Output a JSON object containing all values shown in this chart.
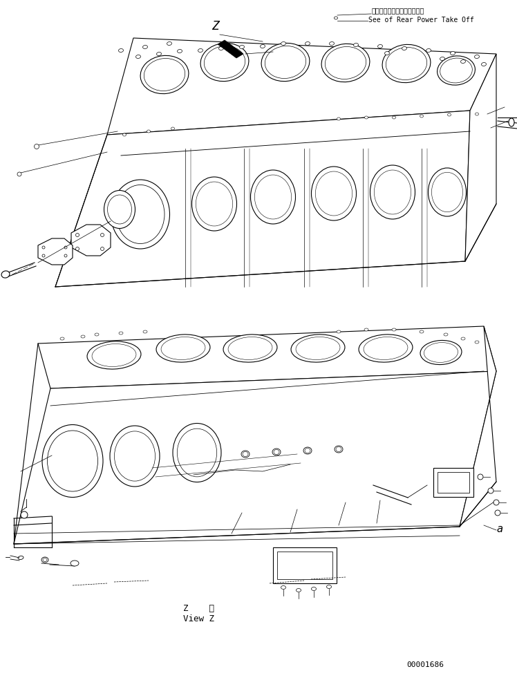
{
  "bg_color": "#ffffff",
  "line_color": "#000000",
  "fig_width": 7.48,
  "fig_height": 9.81,
  "dpi": 100,
  "top_right_text_line1": "リヤーパワーテークオフ参照",
  "top_right_text_line2": "See of Rear Power Take Off",
  "view_z_label": "Z    視",
  "view_z_sublabel": "View Z",
  "part_number": "00001686",
  "arrow_label": "Z",
  "bottom_label": "a"
}
